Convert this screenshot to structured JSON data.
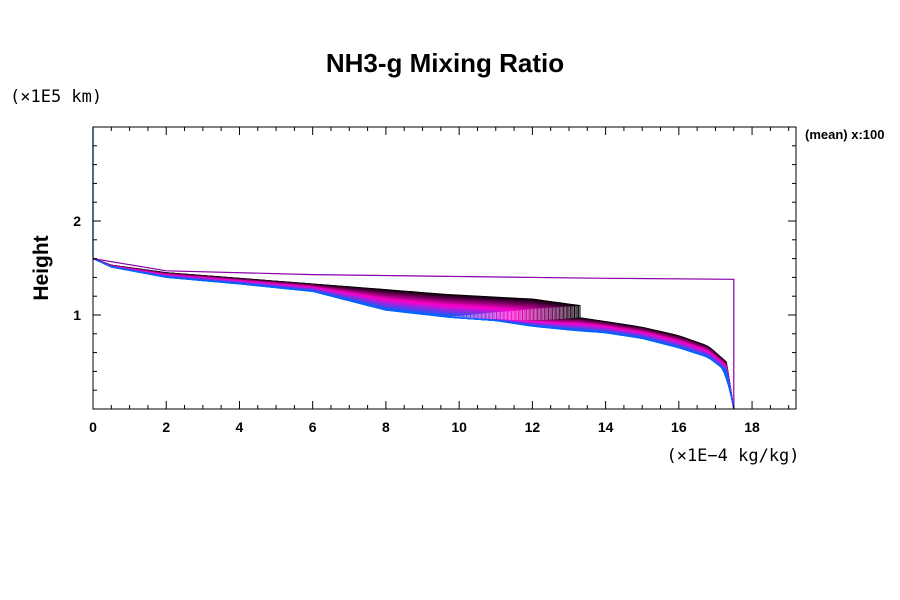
{
  "chart_data": {
    "type": "line",
    "title": "NH3-g Mixing Ratio",
    "ylabel": "Height",
    "x_unit": "(×1E−4 kg/kg)",
    "y_unit": "(×1E5 km)",
    "annotation": "(mean) x:100",
    "xlim": [
      0,
      19.2
    ],
    "ylim": [
      0,
      3.0
    ],
    "x_ticks": [
      "0",
      "2",
      "4",
      "6",
      "8",
      "10",
      "12",
      "14",
      "16",
      "18"
    ],
    "y_ticks": [
      "1",
      "2"
    ],
    "grid": false,
    "mean_profile": {
      "color": "#8800aa",
      "points": [
        [
          0,
          1.6
        ],
        [
          2,
          1.47
        ],
        [
          6,
          1.43
        ],
        [
          10,
          1.41
        ],
        [
          14,
          1.39
        ],
        [
          17.5,
          1.38
        ],
        [
          17.5,
          0.0
        ]
      ]
    },
    "ensemble": {
      "member_count": 100,
      "color_start": "#000000",
      "color_mid": "#ff00cc",
      "color_end": "#0066ff",
      "surface_x": 17.5,
      "top_height": 1.6,
      "step_x_range": [
        9.6,
        13.3
      ],
      "upper_profile": [
        [
          0,
          1.6
        ],
        [
          0.5,
          1.53
        ],
        [
          2,
          1.45
        ],
        [
          4,
          1.39
        ],
        [
          6,
          1.33
        ],
        [
          8,
          1.27
        ],
        [
          9.6,
          1.22
        ],
        [
          11,
          1.19
        ],
        [
          12,
          1.17
        ],
        [
          13.3,
          1.1
        ]
      ],
      "lower_profile": [
        [
          0,
          1.6
        ],
        [
          0.5,
          1.51
        ],
        [
          2,
          1.4
        ],
        [
          4,
          1.33
        ],
        [
          6,
          1.25
        ],
        [
          7,
          1.15
        ],
        [
          8,
          1.05
        ],
        [
          9.6,
          0.98
        ],
        [
          11,
          0.94
        ],
        [
          12,
          0.88
        ],
        [
          13,
          0.84
        ],
        [
          14,
          0.81
        ],
        [
          15,
          0.75
        ],
        [
          16,
          0.65
        ],
        [
          16.8,
          0.55
        ],
        [
          17.3,
          0.4
        ],
        [
          17.5,
          0.0
        ]
      ],
      "post_step_profile": [
        [
          13.3,
          0.97
        ],
        [
          14,
          0.93
        ],
        [
          15,
          0.87
        ],
        [
          16,
          0.78
        ],
        [
          16.8,
          0.67
        ],
        [
          17.3,
          0.5
        ],
        [
          17.5,
          0.0
        ]
      ]
    }
  }
}
